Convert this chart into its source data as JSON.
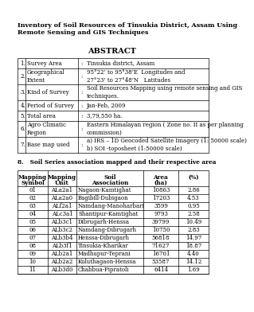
{
  "title_line1": "Inventory of Soil Resources of Tinsukia District, Assam Using",
  "title_line2": "Remote Sensing and GIS Techniques",
  "abstract_title": "ABSTRACT",
  "abstract_rows": [
    [
      "1.",
      "Survey Area",
      ":",
      "Tinsukia district, Assam"
    ],
    [
      "2.",
      "Geographical\nExtent",
      ":",
      "95°22’ to 95°38’E  Longitudes and\n27°23’ to 27°48’N   Latitudes"
    ],
    [
      "3.",
      "Kind of Survey",
      ":",
      "Soil Resources Mapping using remote sensing and GIS\ntechniques."
    ],
    [
      "4.",
      "Period of Survey",
      ":",
      "Jan-Feb, 2009"
    ],
    [
      "5.",
      "Total area",
      ":",
      "3,79,550 ha."
    ],
    [
      "6.",
      "Agro Climatic\nRegion",
      ":",
      "Eastern Himalayan region ( Zone no. II as per planning\ncommission)"
    ],
    [
      "7.",
      "Base map used",
      ":",
      "a) IRS – 1D Geocoded Satellite Imagery (1: 50000 scale)\nb) SOI -toposheet (1:50000 scale)"
    ]
  ],
  "section8_title": "8.   Soil Series association mapped and their respective area",
  "table_headers_line1": [
    "Mapping",
    "Mapping",
    "Soil",
    "Area",
    "(%)"
  ],
  "table_headers_line2": [
    "Symbol",
    "Unit",
    "Association",
    "(ha)",
    ""
  ],
  "table_rows": [
    [
      "01",
      "ALa2a1",
      "Nagaon-Kamtighat",
      "10863",
      "2.86"
    ],
    [
      "02",
      "ALa2a0",
      "Bagibill-Dubigaon",
      "17203",
      "4.53"
    ],
    [
      "03",
      "ALf2a1",
      "Namdang-Manoharbari",
      "3599",
      "0.95"
    ],
    [
      "04",
      "ALc3a1",
      "Shantipur-Kamtighat",
      "9793",
      "2.58"
    ],
    [
      "05",
      "ALb3c1",
      "Dibrugarh-Henssa",
      "39799",
      "10.49"
    ],
    [
      "06",
      "ALb3c2",
      "Namdang-Dibrugarh",
      "10750",
      "2.83"
    ],
    [
      "07",
      "ALb3b4",
      "Henssa-Dibrugarh",
      "56818",
      "14.97"
    ],
    [
      "08",
      "ALb3f1",
      "Tinsukia-Kharikar",
      "71627",
      "18.87"
    ],
    [
      "09",
      "ALb2a1",
      "Madhupur-Teprani",
      "16701",
      "4.40"
    ],
    [
      "10",
      "ALb2a2",
      "Kuluthagaon-Henssa",
      "53587",
      "14.12"
    ],
    [
      "11",
      "ALb3d0",
      "Chabbua-Pipratoli",
      "6414",
      "1.69"
    ]
  ],
  "bg_color": "#ffffff",
  "text_color": "#000000",
  "font_size_title": 5.8,
  "font_size_abstract_heading": 7.0,
  "font_size_body": 5.0,
  "font_size_table_header": 5.2,
  "font_size_table_data": 5.0
}
